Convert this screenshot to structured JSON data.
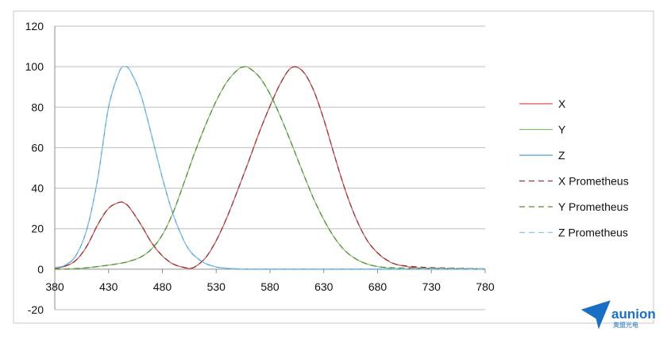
{
  "chart_data": {
    "type": "line",
    "title": "",
    "xlabel": "",
    "ylabel": "",
    "xlim": [
      380,
      780
    ],
    "ylim": [
      -20,
      120
    ],
    "xticks": [
      "380",
      "430",
      "480",
      "530",
      "580",
      "630",
      "680",
      "730",
      "780"
    ],
    "yticks": [
      "-20",
      "0",
      "20",
      "40",
      "60",
      "80",
      "100",
      "120"
    ],
    "grid": "horizontal",
    "legend_position": "right",
    "x": [
      380,
      390,
      400,
      410,
      420,
      430,
      440,
      445,
      450,
      460,
      470,
      480,
      490,
      500,
      505,
      510,
      520,
      530,
      540,
      550,
      555,
      560,
      570,
      580,
      590,
      600,
      610,
      620,
      630,
      640,
      650,
      660,
      670,
      680,
      690,
      700,
      720,
      740,
      760,
      780
    ],
    "series": [
      {
        "name": "X",
        "color": "#e05050",
        "dash": "solid",
        "values": [
          0.4,
          1.5,
          4.5,
          11.5,
          22.0,
          30.0,
          33.0,
          32.5,
          30.0,
          22.0,
          13.0,
          6.5,
          2.5,
          0.8,
          0.4,
          1.0,
          5.5,
          14.0,
          25.5,
          39.0,
          46.0,
          53.0,
          67.5,
          80.5,
          92.0,
          99.5,
          98.0,
          89.0,
          74.0,
          56.0,
          39.0,
          25.0,
          14.5,
          8.0,
          4.0,
          2.0,
          0.5,
          0.2,
          0.1,
          0.0
        ]
      },
      {
        "name": "Y",
        "color": "#7fc26a",
        "dash": "solid",
        "values": [
          0.0,
          0.1,
          0.3,
          0.7,
          1.3,
          2.0,
          2.8,
          3.3,
          4.0,
          6.0,
          10.0,
          17.0,
          28.0,
          42.5,
          50.0,
          57.5,
          71.0,
          83.0,
          92.5,
          98.5,
          99.8,
          99.5,
          95.0,
          86.5,
          75.0,
          62.0,
          48.5,
          35.5,
          24.5,
          15.5,
          9.0,
          5.0,
          2.6,
          1.3,
          0.6,
          0.3,
          0.05,
          0.0,
          0.0,
          0.0
        ]
      },
      {
        "name": "Z",
        "color": "#4a9fd4",
        "dash": "solid",
        "values": [
          0.5,
          2.0,
          7.0,
          20.0,
          45.0,
          80.0,
          97.5,
          100.0,
          98.0,
          86.0,
          66.0,
          45.0,
          27.0,
          14.0,
          9.5,
          6.5,
          2.8,
          1.1,
          0.4,
          0.1,
          0.05,
          0.0,
          0.0,
          0.0,
          0.0,
          0.0,
          0.0,
          0.0,
          0.0,
          0.0,
          0.0,
          0.0,
          0.0,
          0.0,
          0.0,
          0.0,
          0.0,
          0.0,
          0.0,
          0.0
        ]
      },
      {
        "name": "X Prometheus",
        "color": "#8a3a3a",
        "dash": "dashed",
        "values": [
          0.5,
          1.6,
          4.6,
          11.6,
          22.1,
          30.1,
          33.0,
          32.6,
          30.1,
          22.1,
          13.1,
          6.6,
          2.6,
          0.9,
          0.6,
          1.1,
          5.6,
          14.1,
          25.6,
          39.0,
          46.0,
          53.0,
          67.5,
          80.5,
          92.0,
          99.5,
          98.0,
          89.0,
          74.0,
          56.0,
          39.0,
          25.0,
          14.5,
          8.1,
          4.1,
          2.1,
          1.0,
          0.6,
          0.4,
          0.2
        ]
      },
      {
        "name": "Y Prometheus",
        "color": "#5a8a3a",
        "dash": "dashed",
        "values": [
          0.0,
          0.1,
          0.3,
          0.7,
          1.3,
          2.0,
          2.8,
          3.3,
          4.0,
          6.0,
          10.0,
          17.0,
          28.0,
          42.5,
          50.0,
          57.5,
          71.0,
          83.0,
          92.5,
          98.5,
          99.8,
          99.5,
          95.0,
          86.5,
          75.0,
          62.0,
          48.5,
          35.5,
          24.5,
          15.5,
          9.0,
          5.0,
          2.6,
          1.3,
          0.8,
          0.6,
          0.5,
          0.4,
          0.3,
          0.2
        ]
      },
      {
        "name": "Z Prometheus",
        "color": "#8fc4e8",
        "dash": "dashed",
        "values": [
          0.8,
          2.2,
          7.2,
          20.2,
          45.2,
          80.2,
          97.6,
          100.0,
          98.1,
          86.1,
          66.1,
          45.1,
          27.1,
          14.1,
          9.6,
          6.6,
          2.9,
          1.2,
          0.5,
          0.3,
          0.2,
          0.2,
          0.2,
          0.2,
          0.2,
          0.2,
          0.2,
          0.2,
          0.2,
          0.2,
          0.2,
          0.2,
          0.2,
          0.2,
          0.2,
          0.2,
          0.2,
          0.2,
          0.2,
          0.2
        ]
      }
    ]
  },
  "logo": {
    "name": "aunion",
    "subtitle": "奥盟光电",
    "color": "#1a6fc4"
  }
}
